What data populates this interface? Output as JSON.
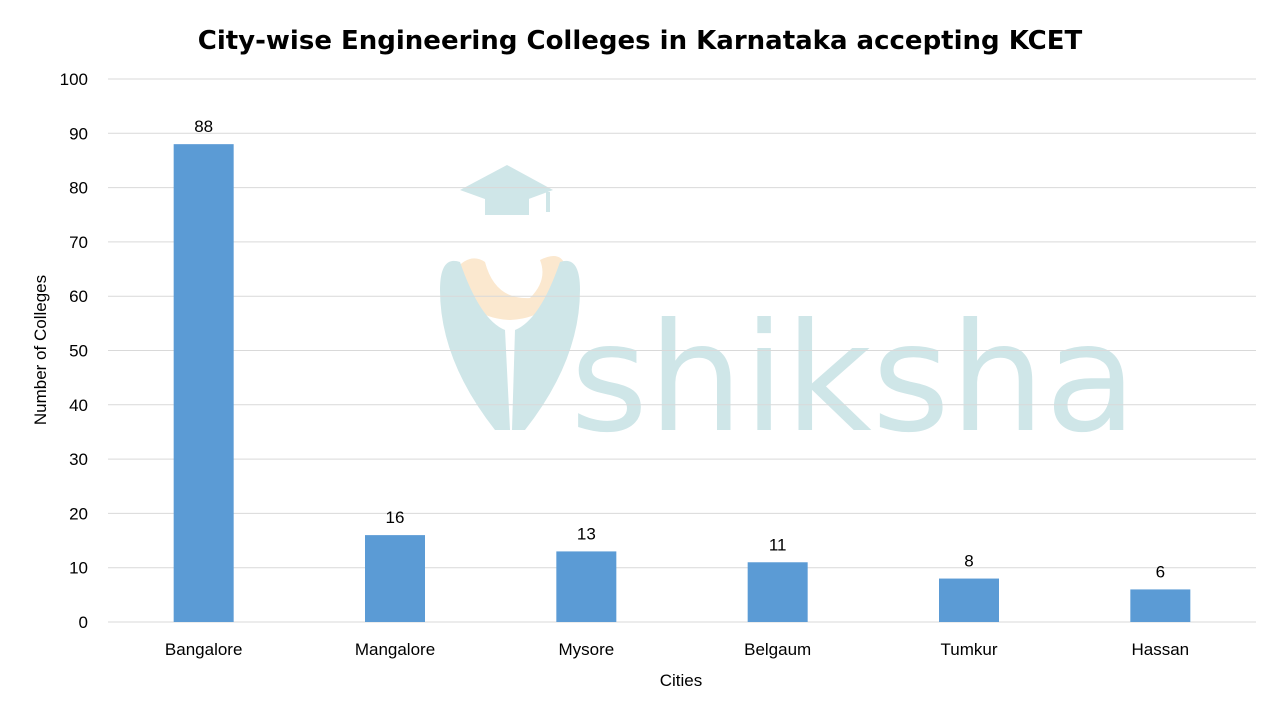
{
  "chart_data": {
    "type": "bar",
    "title": "City-wise Engineering Colleges in Karnataka accepting KCET",
    "xlabel": "Cities",
    "ylabel": "Number of Colleges",
    "categories": [
      "Bangalore",
      "Mangalore",
      "Mysore",
      "Belgaum",
      "Tumkur",
      "Hassan"
    ],
    "values": [
      88,
      16,
      13,
      11,
      8,
      6
    ],
    "ylim": [
      0,
      100
    ],
    "yticks": [
      0,
      10,
      20,
      30,
      40,
      50,
      60,
      70,
      80,
      90,
      100
    ],
    "grid": true,
    "data_labels": true,
    "bar_color": "#5b9bd5"
  },
  "watermark": {
    "text": "shiksha",
    "color": "#cfe6e8",
    "accent_color": "#fbe8cf"
  }
}
